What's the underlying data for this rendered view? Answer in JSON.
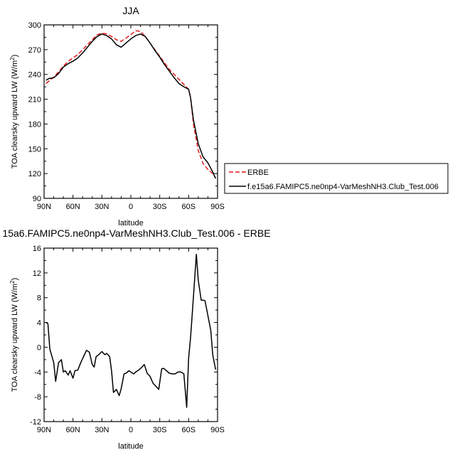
{
  "chart_data": [
    {
      "type": "line",
      "title": "JJA",
      "xlabel": "latitude",
      "ylabel_prefix": "TOA clearsky upward LW (W/m",
      "ylabel_sup": "2",
      "ylabel_suffix": ")",
      "xlim": [
        90,
        -90
      ],
      "ylim": [
        90,
        300
      ],
      "x_tick_values": [
        90,
        60,
        30,
        0,
        -30,
        -60,
        -90
      ],
      "x_tick_labels": [
        "90N",
        "60N",
        "30N",
        "0",
        "30S",
        "60S",
        "90S"
      ],
      "y_ticks": [
        90,
        120,
        150,
        180,
        210,
        240,
        270,
        300
      ],
      "y_tick_labels": [
        "90",
        "120",
        "150",
        "180",
        "210",
        "240",
        "270",
        "300"
      ],
      "legend_position": "right",
      "series": [
        {
          "name": "ERBE",
          "color": "#e41a1c",
          "dash": "dashed",
          "x": [
            88,
            85,
            80,
            75,
            70,
            65,
            60,
            55,
            50,
            45,
            40,
            35,
            30,
            25,
            20,
            15,
            10,
            5,
            0,
            -5,
            -10,
            -15,
            -20,
            -25,
            -30,
            -35,
            -40,
            -45,
            -50,
            -55,
            -60,
            -62,
            -65,
            -70,
            -75,
            -80,
            -85,
            -88
          ],
          "y": [
            229,
            232,
            237,
            243,
            250,
            256,
            260,
            264,
            270,
            276,
            282,
            288,
            290,
            289,
            286,
            282,
            280,
            284,
            288,
            293,
            292,
            286,
            278,
            270,
            262,
            254,
            246,
            240,
            234,
            228,
            222,
            212,
            180,
            148,
            132,
            125,
            120,
            115
          ]
        },
        {
          "name": "f.e15a6.FAMIPC5.ne0np4-VarMeshNH3.Club_Test.006",
          "color": "#000000",
          "dash": "solid",
          "x": [
            88,
            85,
            80,
            75,
            70,
            65,
            60,
            55,
            50,
            45,
            40,
            35,
            30,
            25,
            20,
            15,
            10,
            5,
            0,
            -5,
            -10,
            -15,
            -20,
            -25,
            -30,
            -35,
            -40,
            -45,
            -50,
            -55,
            -60,
            -62,
            -65,
            -70,
            -75,
            -80,
            -85,
            -88
          ],
          "y": [
            233,
            235,
            236,
            241,
            249,
            253,
            256,
            260,
            266,
            273,
            280,
            286,
            289,
            287,
            283,
            276,
            273,
            278,
            283,
            287,
            289,
            286,
            278,
            269,
            261,
            252,
            244,
            236,
            229,
            225,
            222,
            212,
            185,
            156,
            140,
            133,
            122,
            114
          ]
        }
      ]
    },
    {
      "type": "line",
      "title": "15a6.FAMIPC5.ne0np4-VarMeshNH3.Club_Test.006 - ERBE",
      "xlabel": "latitude",
      "ylabel_prefix": "TOA clearsky upward LW (W/m",
      "ylabel_sup": "2",
      "ylabel_suffix": ")",
      "xlim": [
        90,
        -90
      ],
      "ylim": [
        -12,
        16
      ],
      "x_tick_values": [
        90,
        60,
        30,
        0,
        -30,
        -60,
        -90
      ],
      "x_tick_labels": [
        "90N",
        "60N",
        "30N",
        "0",
        "30S",
        "60S",
        "90S"
      ],
      "y_ticks": [
        -12,
        -8,
        -4,
        0,
        4,
        8,
        12,
        16
      ],
      "y_tick_labels": [
        "-12",
        "-8",
        "-4",
        "0",
        "4",
        "8",
        "12",
        "16"
      ],
      "series": [
        {
          "color": "#000000",
          "dash": "solid",
          "x": [
            88,
            86,
            84,
            80,
            78,
            75,
            72,
            70,
            68,
            65,
            63,
            60,
            58,
            55,
            52,
            49,
            46,
            43,
            40,
            38,
            36,
            34,
            30,
            27,
            25,
            22,
            20,
            18,
            15,
            12,
            10,
            7,
            5,
            2,
            0,
            -3,
            -5,
            -8,
            -11,
            -14,
            -17,
            -20,
            -23,
            -26,
            -29,
            -32,
            -34,
            -37,
            -40,
            -43,
            -46,
            -49,
            -52,
            -55,
            -58,
            -60,
            -62,
            -64,
            -68,
            -70,
            -73,
            -75,
            -77,
            -79,
            -81,
            -83,
            -85,
            -88
          ],
          "y": [
            4.0,
            3.8,
            -0.3,
            -2.5,
            -5.5,
            -2.5,
            -2.0,
            -4.0,
            -3.8,
            -4.5,
            -3.8,
            -5.0,
            -3.8,
            -3.7,
            -2.5,
            -1.5,
            -0.5,
            -0.8,
            -2.8,
            -3.2,
            -1.5,
            -1.3,
            -0.7,
            -1.2,
            -1.0,
            -1.5,
            -3.8,
            -7.3,
            -6.8,
            -7.8,
            -6.7,
            -4.3,
            -4.2,
            -3.8,
            -4.0,
            -4.3,
            -4.0,
            -3.7,
            -3.3,
            -2.8,
            -4.2,
            -4.7,
            -5.8,
            -6.3,
            -6.8,
            -3.5,
            -3.4,
            -3.8,
            -4.2,
            -4.3,
            -4.3,
            -4.0,
            -4.0,
            -4.3,
            -9.7,
            -1.8,
            1.5,
            6.0,
            15.0,
            10.8,
            7.6,
            7.6,
            7.5,
            5.9,
            4.3,
            2.7,
            -1.2,
            -3.6
          ]
        }
      ]
    }
  ]
}
